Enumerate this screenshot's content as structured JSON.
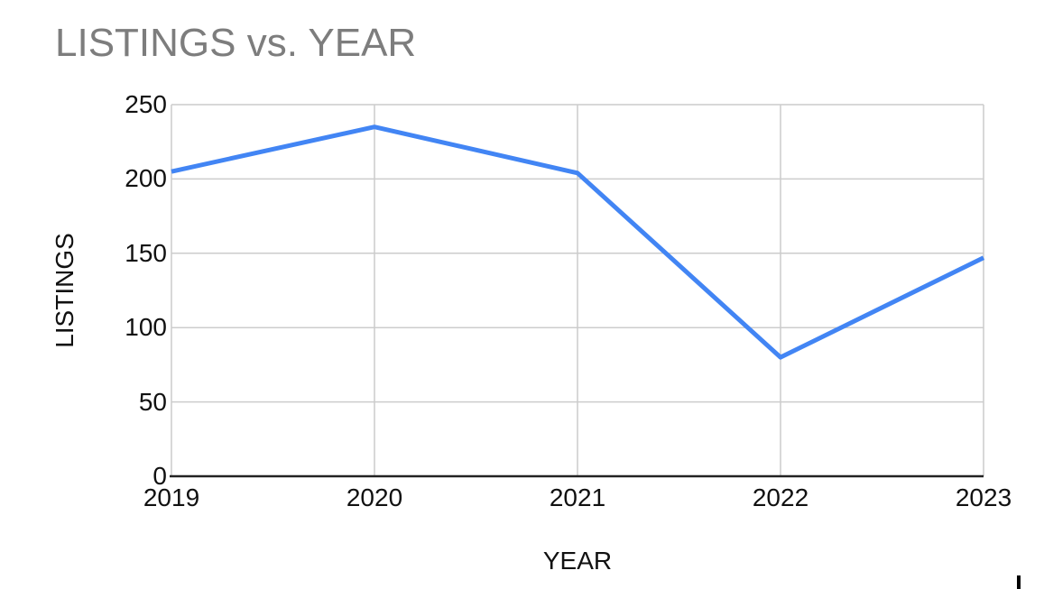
{
  "chart_data": {
    "type": "line",
    "title": "LISTINGS vs. YEAR",
    "xlabel": "YEAR",
    "ylabel": "LISTINGS",
    "categories": [
      "2019",
      "2020",
      "2021",
      "2022",
      "2023"
    ],
    "series": [
      {
        "name": "LISTINGS",
        "values": [
          205,
          235,
          204,
          80,
          147
        ]
      }
    ],
    "yticks": [
      "0",
      "50",
      "100",
      "150",
      "200",
      "250"
    ],
    "ylim": [
      0,
      250
    ],
    "grid": true,
    "legend_position": "none",
    "colors": {
      "line": "#4285f4",
      "grid": "#cccccc",
      "axis": "#222222",
      "title_text": "#7d7d7d",
      "label_text": "#111111",
      "background": "#ffffff"
    }
  }
}
